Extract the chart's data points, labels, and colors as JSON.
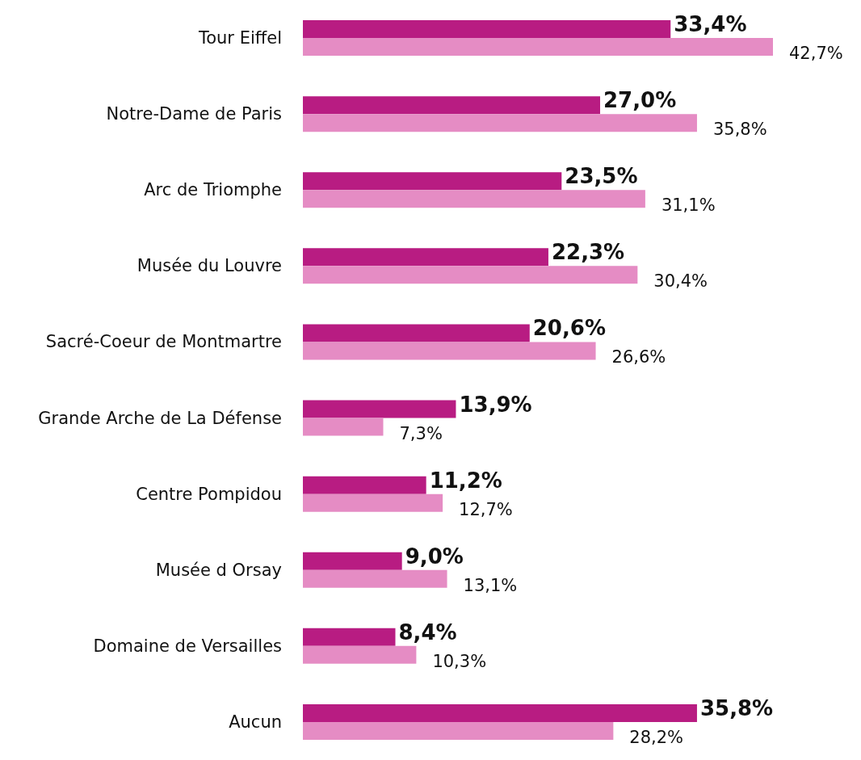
{
  "chart_data": {
    "type": "bar",
    "orientation": "horizontal",
    "categories": [
      "Tour Eiffel",
      "Notre-Dame de Paris",
      "Arc de Triomphe",
      "Musée du Louvre",
      "Sacré-Coeur de Montmartre",
      "Grande Arche de La Défense",
      "Centre Pompidou",
      "Musée d Orsay",
      "Domaine de Versailles",
      "Aucun"
    ],
    "series": [
      {
        "color": "#b81c82",
        "values": [
          33.4,
          27.0,
          23.5,
          22.3,
          20.6,
          13.9,
          11.2,
          9.0,
          8.4,
          35.8
        ],
        "value_labels": [
          "33,4%",
          "27,0%",
          "23,5%",
          "22,3%",
          "20,6%",
          "13,9%",
          "11,2%",
          "9,0%",
          "8,4%",
          "35,8%"
        ]
      },
      {
        "color": "#e58cc4",
        "values": [
          42.7,
          35.8,
          31.1,
          30.4,
          26.6,
          7.3,
          12.7,
          13.1,
          10.3,
          28.2
        ],
        "value_labels": [
          "42,7%",
          "35,8%",
          "31,1%",
          "30,4%",
          "26,6%",
          "7,3%",
          "12,7%",
          "13,1%",
          "10,3%",
          "28,2%"
        ]
      }
    ]
  }
}
